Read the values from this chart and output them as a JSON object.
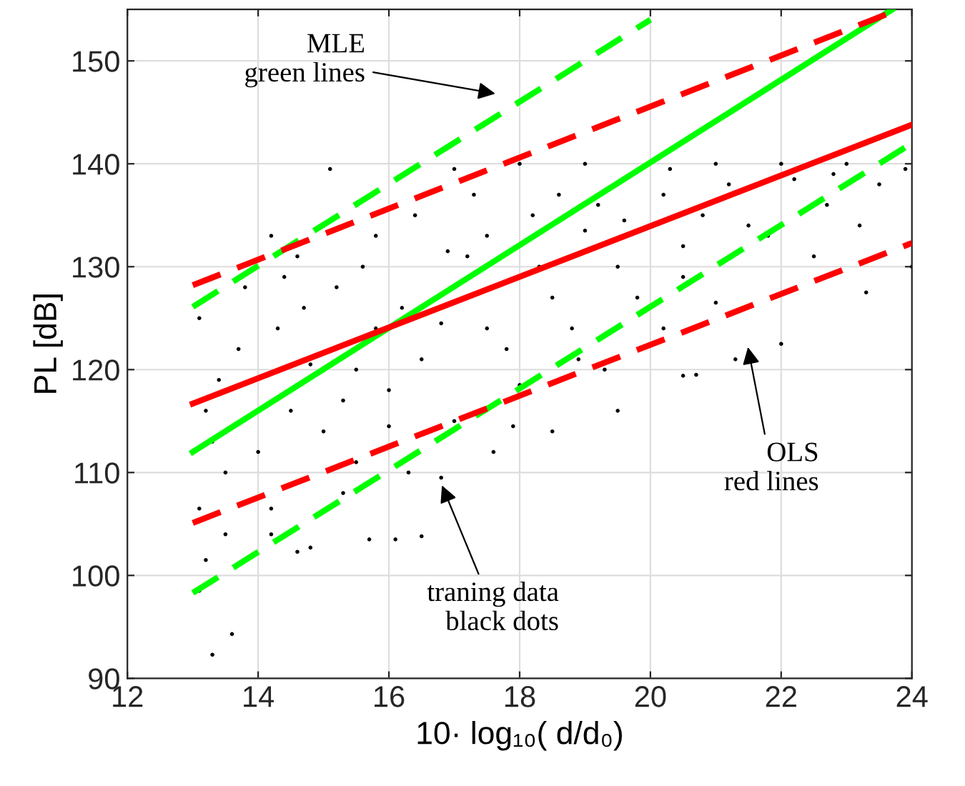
{
  "chart_data": {
    "type": "scatter",
    "xlabel": "10· log₁₀( d/d₀)",
    "ylabel": "PL [dB]",
    "xlim": [
      12,
      24
    ],
    "ylim": [
      90,
      155
    ],
    "xticks": [
      12,
      14,
      16,
      18,
      20,
      22,
      24
    ],
    "yticks": [
      90,
      100,
      110,
      120,
      130,
      140,
      150
    ],
    "grid": true,
    "legend": false,
    "series": [
      {
        "color": "#000000",
        "marker": "circle",
        "x": [
          13.3,
          13.6,
          13.1,
          13.2,
          13.1,
          13.5,
          14.2,
          14.6,
          14.8,
          15.7,
          16.1,
          16.5,
          14.2,
          15.3,
          16.3,
          16.8,
          17.6,
          18.5,
          19.5,
          20.7,
          20.5,
          21.3,
          22.0,
          23.3,
          24.0,
          17.9,
          19.3,
          18.0,
          14.0,
          13.5,
          15.0,
          15.5,
          13.2,
          13.4,
          14.5,
          16.0,
          13.7,
          14.3,
          15.2,
          14.6,
          15.8,
          16.4,
          17.3,
          15.1,
          14.2,
          13.8,
          13.1,
          17.0,
          18.0,
          19.0,
          20.3,
          21.0,
          22.0,
          23.0,
          23.9,
          23.5,
          22.7,
          21.5,
          20.5,
          19.5,
          18.5,
          17.5,
          16.5,
          15.5,
          14.8,
          16.2,
          17.2,
          18.2,
          19.2,
          20.2,
          21.2,
          22.2,
          19.8,
          18.8,
          17.8,
          16.8,
          15.8,
          14.7,
          17.5,
          18.6,
          19.6,
          20.8,
          21.8,
          22.5,
          23.2,
          20.2,
          21.0,
          18.3,
          16.9,
          15.6,
          14.4,
          13.3,
          19.0,
          20.5,
          22.8,
          17.0,
          18.9,
          16.0,
          15.3
        ],
        "values": [
          92.3,
          94.3,
          98.5,
          101.5,
          106.5,
          104,
          104,
          102.3,
          102.7,
          103.5,
          103.5,
          103.8,
          106.5,
          108,
          110,
          109.5,
          112,
          114,
          116,
          119.5,
          119.4,
          121,
          122.5,
          127.5,
          130,
          114.5,
          120,
          118.5,
          112,
          110,
          114,
          111,
          116,
          119,
          116,
          118,
          122,
          124,
          128,
          131,
          133,
          135,
          137,
          139.5,
          133,
          128,
          125,
          139.5,
          140,
          140,
          139.5,
          140,
          140,
          140,
          139.5,
          138,
          136,
          134,
          132,
          130,
          127,
          124,
          121,
          120,
          120.5,
          126,
          131,
          135,
          136,
          137,
          138,
          138.5,
          127,
          124,
          122,
          124.5,
          124,
          126,
          133,
          137,
          134.5,
          135,
          133,
          131,
          134,
          124,
          126.5,
          130,
          131.5,
          130,
          129,
          113,
          133.5,
          129,
          139,
          115,
          121,
          114.5,
          117
        ]
      },
      {
        "type": "line",
        "color": "#00ff00",
        "line_style": "solid",
        "x": [
          13,
          23.7
        ],
        "values": [
          112,
          155
        ]
      },
      {
        "type": "line",
        "color": "#ff0000",
        "line_style": "solid",
        "x": [
          13,
          24
        ],
        "values": [
          116.7,
          143.8
        ]
      },
      {
        "type": "line",
        "color": "#00ff00",
        "line_style": "dashed",
        "x": [
          13,
          20
        ],
        "values": [
          126.1,
          154
        ]
      },
      {
        "type": "line",
        "color": "#00ff00",
        "line_style": "dashed",
        "x": [
          13,
          24
        ],
        "values": [
          98.3,
          142
        ]
      },
      {
        "type": "line",
        "color": "#ff0000",
        "line_style": "dashed",
        "x": [
          13,
          23.6
        ],
        "values": [
          128.2,
          154.5
        ]
      },
      {
        "type": "line",
        "color": "#ff0000",
        "line_style": "dashed",
        "x": [
          13,
          24
        ],
        "values": [
          105.1,
          132.3
        ]
      }
    ],
    "annotations": [
      "MLE\ngreen lines",
      "OLS\nred lines",
      "traning data\nblack dots"
    ]
  }
}
